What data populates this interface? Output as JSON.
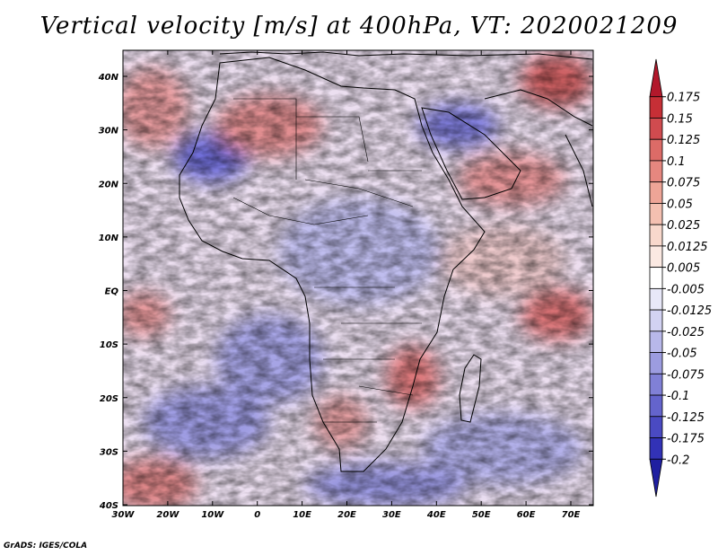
{
  "title": "Vertical velocity [m/s] at 400hPa, VT: 2020021209",
  "footer": "GrADS: IGES/COLA",
  "lat_labels": [
    "40N",
    "30N",
    "20N",
    "10N",
    "EQ",
    "10S",
    "20S",
    "30S",
    "40S"
  ],
  "lon_labels": [
    "30W",
    "20W",
    "10W",
    "0",
    "10E",
    "20E",
    "30E",
    "40E",
    "50E",
    "60E",
    "70E"
  ],
  "colorbar": {
    "levels": [
      "0.175",
      "0.15",
      "0.125",
      "0.1",
      "0.075",
      "0.05",
      "0.025",
      "0.0125",
      "0.005",
      "-0.005",
      "-0.0125",
      "-0.025",
      "-0.05",
      "-0.075",
      "-0.1",
      "-0.125",
      "-0.175",
      "-0.2"
    ],
    "colors": [
      "#b2182b",
      "#c62f36",
      "#d04b4f",
      "#dc6b67",
      "#e6877f",
      "#eea597",
      "#f4c0b1",
      "#f8d8cc",
      "#fbe9e2",
      "#ffffff",
      "#e8e8f8",
      "#d2d2f2",
      "#b8b8ea",
      "#9c9ce0",
      "#8080d6",
      "#6464cc",
      "#4a4ac2",
      "#3232b6",
      "#1f1fa0"
    ]
  },
  "colors": {
    "positive": "#d05050",
    "negative": "#5050d0",
    "neutral": "#ffffff",
    "coast": "#000000"
  }
}
